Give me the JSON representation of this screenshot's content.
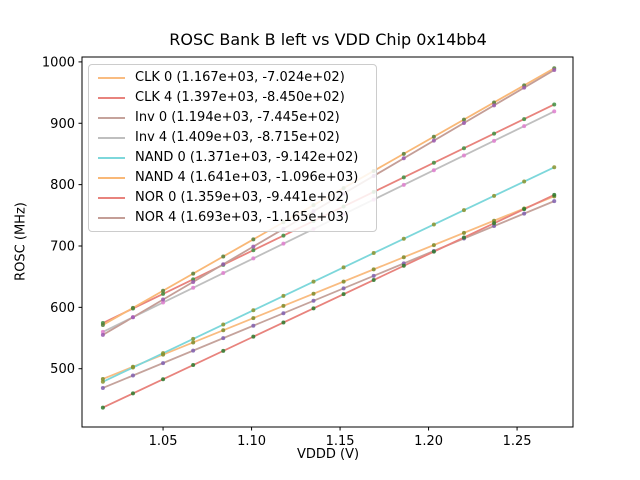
{
  "chart_data": {
    "type": "scatter",
    "title": "ROSC Bank B left vs VDD Chip 0x14bb4",
    "xlabel": "VDDD (V)",
    "ylabel": "ROSC (MHz)",
    "xlim": [
      1.0042,
      1.2816
    ],
    "ylim": [
      405,
      1008
    ],
    "grid": false,
    "legend_position": "upper left",
    "xticks": [
      {
        "value": 1.05,
        "label": "1.05"
      },
      {
        "value": 1.1,
        "label": "1.10"
      },
      {
        "value": 1.15,
        "label": "1.15"
      },
      {
        "value": 1.2,
        "label": "1.20"
      },
      {
        "value": 1.25,
        "label": "1.25"
      }
    ],
    "yticks": [
      {
        "value": 500,
        "label": "500"
      },
      {
        "value": 600,
        "label": "600"
      },
      {
        "value": 700,
        "label": "700"
      },
      {
        "value": 800,
        "label": "800"
      },
      {
        "value": 900,
        "label": "900"
      },
      {
        "value": 1000,
        "label": "1000"
      }
    ],
    "x": [
      1.016,
      1.033,
      1.05,
      1.067,
      1.084,
      1.101,
      1.118,
      1.135,
      1.152,
      1.169,
      1.186,
      1.203,
      1.22,
      1.237,
      1.254,
      1.271
    ],
    "series": [
      {
        "name": "CLK 0",
        "legend_label": "CLK 0 (1.167e+03, -7.024e+02)",
        "fit_slope": 1167.0,
        "fit_intercept": -702.4,
        "line_color": "#f9bc81",
        "marker_color": "#7d8b2a",
        "values": [
          483.3,
          503.1,
          523.0,
          542.8,
          562.6,
          582.5,
          602.3,
          622.1,
          642.0,
          661.8,
          681.7,
          701.5,
          721.3,
          741.2,
          761.0,
          780.9
        ]
      },
      {
        "name": "CLK 4",
        "legend_label": "CLK 4 (1.397e+03, -8.450e+02)",
        "fit_slope": 1397.0,
        "fit_intercept": -845.0,
        "line_color": "#e8837d",
        "marker_color": "#3f9142",
        "values": [
          574.4,
          598.1,
          621.9,
          645.6,
          669.3,
          693.1,
          716.8,
          740.6,
          764.3,
          788.1,
          811.8,
          835.6,
          859.3,
          883.1,
          906.8,
          930.6
        ]
      },
      {
        "name": "Inv 0",
        "legend_label": "Inv 0 (1.194e+03, -7.445e+02)",
        "fit_slope": 1194.0,
        "fit_intercept": -744.5,
        "line_color": "#c5a39c",
        "marker_color": "#8060b0",
        "values": [
          468.6,
          488.9,
          509.2,
          529.5,
          549.8,
          570.1,
          590.4,
          610.7,
          631.0,
          651.3,
          671.6,
          691.9,
          712.2,
          732.5,
          752.8,
          773.1
        ]
      },
      {
        "name": "Inv 4",
        "legend_label": "Inv 4 (1.409e+03, -8.715e+02)",
        "fit_slope": 1409.0,
        "fit_intercept": -871.5,
        "line_color": "#bfbfbf",
        "marker_color": "#e07fd0",
        "values": [
          560.0,
          584.0,
          608.0,
          631.9,
          655.9,
          679.8,
          703.8,
          727.7,
          751.7,
          775.6,
          799.6,
          823.5,
          847.5,
          871.4,
          895.4,
          919.3
        ]
      },
      {
        "name": "NAND 0",
        "legend_label": "NAND 0 (1.371e+03, -9.142e+02)",
        "fit_slope": 1371.0,
        "fit_intercept": -914.2,
        "line_color": "#7dd7db",
        "marker_color": "#8a942e",
        "values": [
          478.7,
          502.0,
          525.4,
          548.7,
          572.0,
          595.3,
          618.6,
          641.9,
          665.2,
          688.5,
          711.8,
          735.1,
          758.4,
          781.7,
          805.0,
          828.3
        ]
      },
      {
        "name": "NAND 4",
        "legend_label": "NAND 4 (1.641e+03, -1.096e+03)",
        "fit_slope": 1641.0,
        "fit_intercept": -1096.0,
        "line_color": "#f9b877",
        "marker_color": "#557f3a",
        "values": [
          571.3,
          599.2,
          627.1,
          654.9,
          682.8,
          710.7,
          738.6,
          766.5,
          794.4,
          822.3,
          850.2,
          878.1,
          906.0,
          933.9,
          961.8,
          989.7
        ]
      },
      {
        "name": "NOR 0",
        "legend_label": "NOR 0 (1.359e+03, -9.441e+02)",
        "fit_slope": 1359.0,
        "fit_intercept": -944.1,
        "line_color": "#e8837d",
        "marker_color": "#2d7a2d",
        "values": [
          436.6,
          459.7,
          482.9,
          506.0,
          529.1,
          552.2,
          575.3,
          598.4,
          621.5,
          644.6,
          667.7,
          690.8,
          713.9,
          737.0,
          760.1,
          783.2
        ]
      },
      {
        "name": "NOR 4",
        "legend_label": "NOR 4 (1.693e+03, -1.165e+03)",
        "fit_slope": 1693.0,
        "fit_intercept": -1165.0,
        "line_color": "#c49e97",
        "marker_color": "#9b59b0",
        "values": [
          555.1,
          583.9,
          612.7,
          641.4,
          670.2,
          699.0,
          727.8,
          756.6,
          785.3,
          814.1,
          842.9,
          871.7,
          900.5,
          929.2,
          958.0,
          986.8
        ]
      }
    ]
  }
}
